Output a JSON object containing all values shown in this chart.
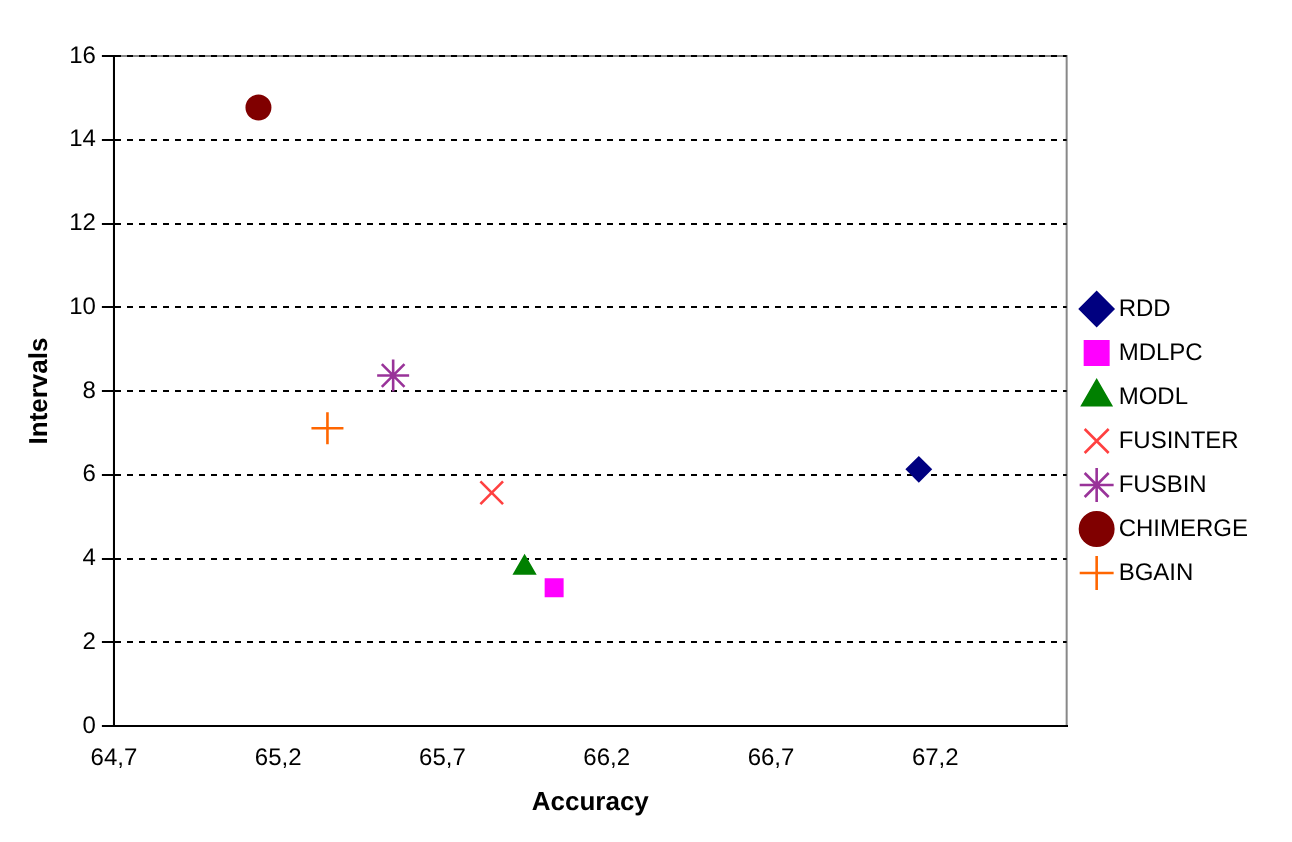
{
  "chart_data": {
    "type": "scatter",
    "xlabel": "Accuracy",
    "ylabel": "Intervals",
    "series": [
      {
        "name": "RDD",
        "color": "#000080",
        "marker": "diamond",
        "x": [
          67.15
        ],
        "values": [
          6.13
        ]
      },
      {
        "name": "MDLPC",
        "color": "#ff00ff",
        "marker": "square",
        "x": [
          66.04
        ],
        "values": [
          3.3
        ]
      },
      {
        "name": "MODL",
        "color": "#008000",
        "marker": "triangle",
        "x": [
          65.95
        ],
        "values": [
          3.78
        ]
      },
      {
        "name": "FUSINTER",
        "color": "#ff4040",
        "marker": "cross",
        "x": [
          65.85
        ],
        "values": [
          5.57
        ]
      },
      {
        "name": "FUSBIN",
        "color": "#993399",
        "marker": "cross",
        "x": [
          65.55
        ],
        "values": [
          8.37
        ]
      },
      {
        "name": "CHIMERGE",
        "color": "#800000",
        "marker": "circle",
        "x": [
          65.14
        ],
        "values": [
          14.77
        ]
      },
      {
        "name": "BGAIN",
        "color": "#ff6600",
        "marker": "cross",
        "x": [
          65.35
        ],
        "values": [
          7.11
        ]
      }
    ],
    "xlim": [
      64.7,
      67.6
    ],
    "xticks": [
      {
        "value": 64.7,
        "label": "64,7"
      },
      {
        "value": 65.2,
        "label": "65,2"
      },
      {
        "value": 65.7,
        "label": "65,7"
      },
      {
        "value": 66.2,
        "label": "66,2"
      },
      {
        "value": 66.7,
        "label": "66,7"
      },
      {
        "value": 67.2,
        "label": "67,2"
      }
    ],
    "ylim": [
      0,
      16
    ],
    "yticks": [
      0,
      2,
      4,
      6,
      8,
      10,
      12,
      14,
      16
    ],
    "grid": "y",
    "legend": "right"
  }
}
